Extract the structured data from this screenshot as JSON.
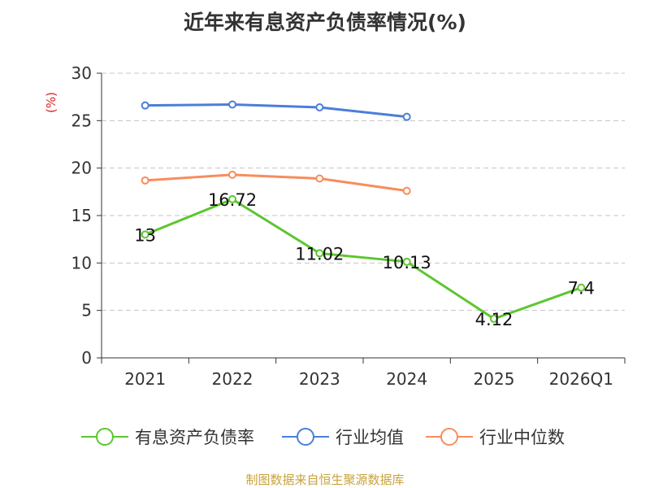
{
  "chart_data": {
    "type": "line",
    "title": "近年来有息资产负债率情况(%)",
    "ylabel": "(%)",
    "xlabel": "",
    "categories": [
      "2021",
      "2022",
      "2023",
      "2024",
      "2025",
      "2026Q1"
    ],
    "ylim": [
      0,
      30
    ],
    "yticks": [
      0,
      5,
      10,
      15,
      20,
      25,
      30
    ],
    "grid": true,
    "legend_position": "bottom",
    "series": [
      {
        "name": "有息资产负债率",
        "values": [
          13,
          16.72,
          11.02,
          10.13,
          4.12,
          7.4
        ],
        "color": "#5cc62f",
        "show_labels": true,
        "labels": [
          "13",
          "16.72",
          "11.02",
          "10.13",
          "4.12",
          "7.4"
        ]
      },
      {
        "name": "行业均值",
        "values": [
          26.6,
          26.7,
          26.4,
          25.4,
          null,
          null
        ],
        "color": "#4a7fd9",
        "show_labels": false
      },
      {
        "name": "行业中位数",
        "values": [
          18.7,
          19.3,
          18.9,
          17.6,
          null,
          null
        ],
        "color": "#f78d5c",
        "show_labels": false
      }
    ]
  },
  "ylabel_color": "#e02020",
  "source": "制图数据来自恒生聚源数据库"
}
